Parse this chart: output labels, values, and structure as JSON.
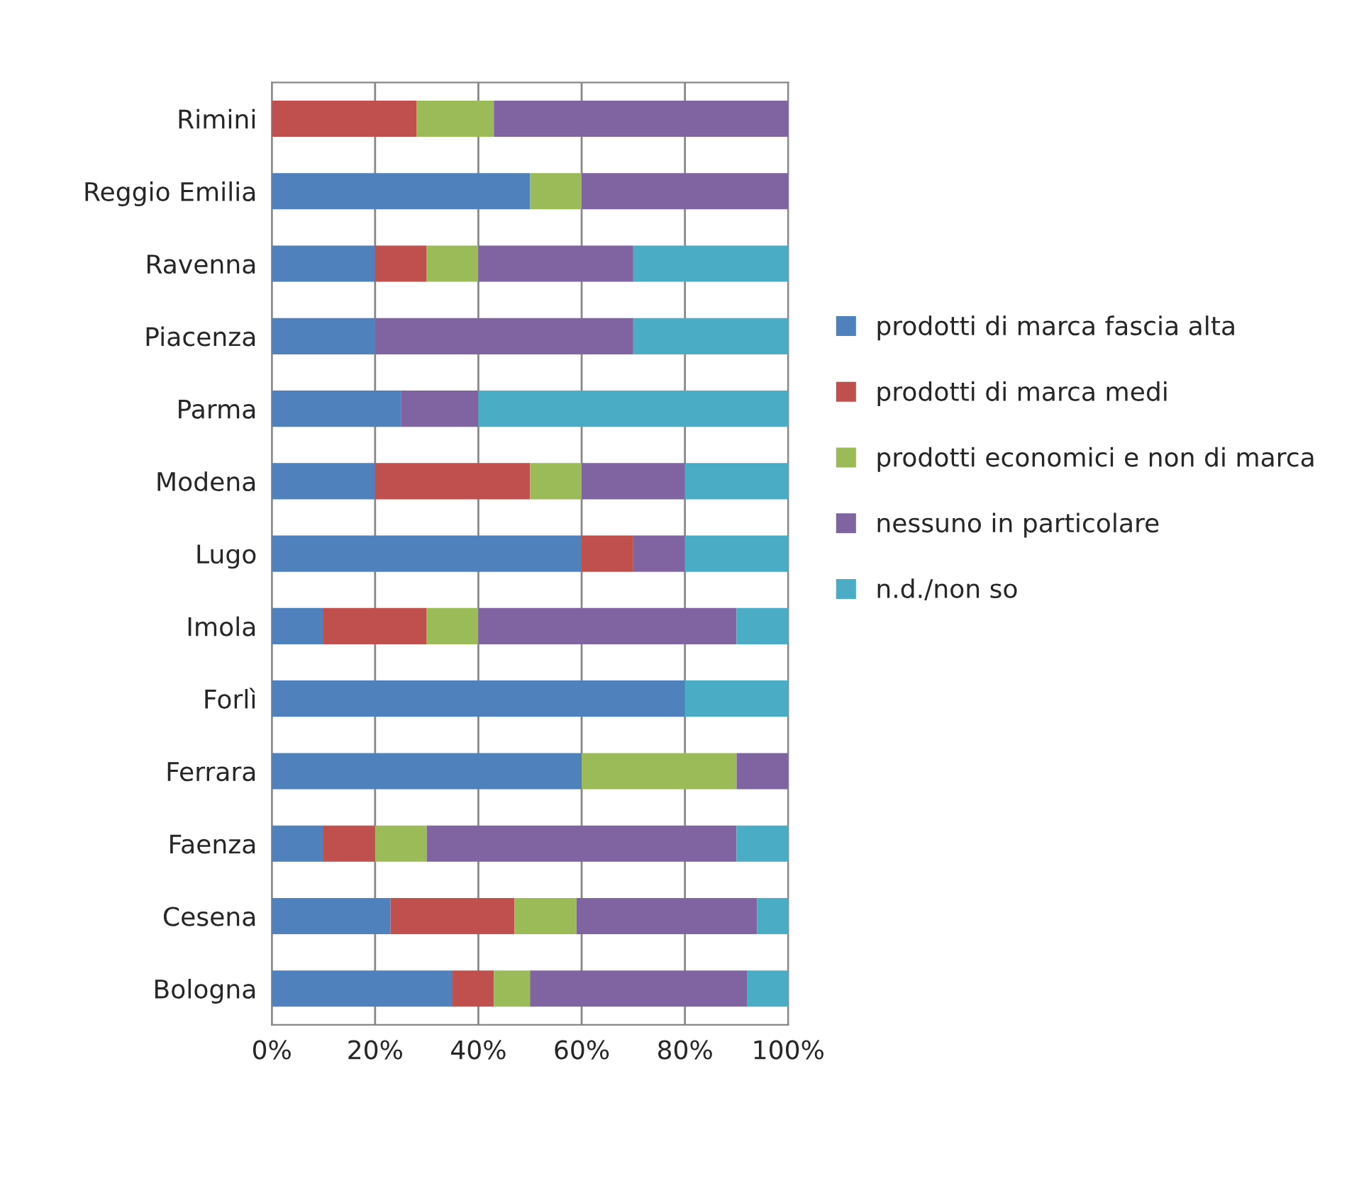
{
  "chart_data": {
    "type": "bar",
    "orientation": "horizontal",
    "stacked": true,
    "categories": [
      "Rimini",
      "Reggio Emilia",
      "Ravenna",
      "Piacenza",
      "Parma",
      "Modena",
      "Lugo",
      "Imola",
      "Forlì",
      "Ferrara",
      "Faenza",
      "Cesena",
      "Bologna"
    ],
    "series": [
      {
        "name": "prodotti di marca fascia alta",
        "color": "#4f81bd",
        "values": [
          null,
          50,
          20,
          20,
          25,
          20,
          60,
          10,
          80,
          60,
          10,
          23,
          35
        ]
      },
      {
        "name": "prodotti di marca medi",
        "color": "#c0504d",
        "values": [
          28,
          null,
          10,
          null,
          null,
          30,
          10,
          20,
          null,
          null,
          10,
          24,
          8
        ]
      },
      {
        "name": "prodotti economici e non di marca",
        "color": "#9bbb59",
        "values": [
          15,
          10,
          10,
          null,
          null,
          10,
          null,
          10,
          null,
          30,
          10,
          12,
          7
        ]
      },
      {
        "name": "nessuno in particolare",
        "color": "#8064a2",
        "values": [
          57,
          40,
          30,
          50,
          15,
          20,
          10,
          50,
          null,
          10,
          60,
          35,
          42
        ]
      },
      {
        "name": "n.d./non so",
        "color": "#4bacc6",
        "values": [
          null,
          null,
          30,
          30,
          60,
          20,
          20,
          10,
          20,
          null,
          10,
          6,
          8
        ]
      }
    ],
    "xlim": [
      0,
      100
    ],
    "xticks": [
      {
        "value": 0,
        "label": "0%"
      },
      {
        "value": 20,
        "label": "20%"
      },
      {
        "value": 40,
        "label": "40%"
      },
      {
        "value": 60,
        "label": "60%"
      },
      {
        "value": 80,
        "label": "80%"
      },
      {
        "value": 100,
        "label": "100%"
      }
    ],
    "grid": "x",
    "legend": "right"
  }
}
